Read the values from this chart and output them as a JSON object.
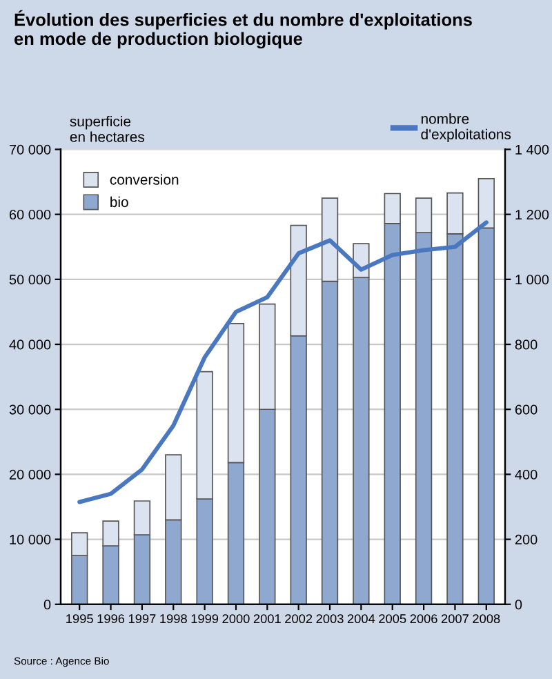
{
  "chart_data": {
    "type": "bar",
    "title": "Évolution des superficies et du nombre d'exploitations\nen mode de production biologique",
    "ylabel": "superficie\nen hectares",
    "categories": [
      "1995",
      "1996",
      "1997",
      "1998",
      "1999",
      "2000",
      "2001",
      "2002",
      "2003",
      "2004",
      "2005",
      "2006",
      "2007",
      "2008"
    ],
    "stacked": true,
    "series": [
      {
        "name": "bio",
        "color": "#8fa8d0",
        "values": [
          7500,
          9000,
          10700,
          13000,
          16200,
          21800,
          30000,
          41300,
          49700,
          50300,
          58600,
          57200,
          57000,
          57900
        ]
      },
      {
        "name": "conversion",
        "color": "#dce3f0",
        "values": [
          3500,
          3800,
          5200,
          10000,
          19600,
          21400,
          16200,
          17000,
          12800,
          5200,
          4600,
          5300,
          6300,
          7600
        ]
      },
      {
        "name": "nombre\nd'exploitations",
        "type": "line",
        "axis": "y2",
        "color": "#4a78c0",
        "values": [
          315,
          340,
          415,
          550,
          760,
          900,
          945,
          1080,
          1120,
          1030,
          1075,
          1090,
          1100,
          1175
        ]
      }
    ],
    "ylim": [
      0,
      70000
    ],
    "yticks": [
      0,
      {
        "value": 10000,
        "label": "10 000"
      },
      {
        "value": 20000,
        "label": "20 000"
      },
      {
        "value": 30000,
        "label": "30 000"
      },
      {
        "value": 40000,
        "label": "40 000"
      },
      {
        "value": 50000,
        "label": "50 000"
      },
      {
        "value": 60000,
        "label": "60 000"
      },
      {
        "value": 70000,
        "label": "70 000"
      }
    ],
    "y2lim": [
      0,
      1400
    ],
    "y2ticks": [
      0,
      200,
      400,
      600,
      800,
      {
        "value": 1000,
        "label": "1 000"
      },
      {
        "value": 1200,
        "label": "1 200"
      },
      {
        "value": 1400,
        "label": "1 400"
      }
    ],
    "grid": "y",
    "legend": "top left",
    "annotations": [
      "Source : Agence Bio"
    ]
  }
}
